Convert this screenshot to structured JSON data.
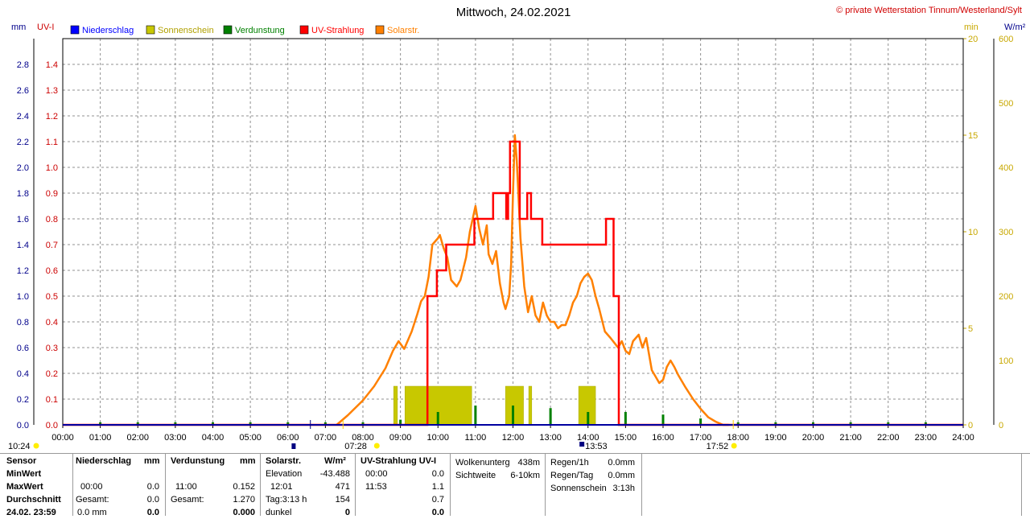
{
  "chart_data": {
    "type": "line",
    "title": "Mittwoch, 24.02.2021",
    "copyright": "© private Wetterstation Tinnum/Westerland/Sylt",
    "units": {
      "left_outer": "mm",
      "left_inner": "UV-I",
      "right_inner": "min",
      "right_outer": "W/m²"
    },
    "legend": [
      {
        "name": "Niederschlag",
        "color": "#0000ff"
      },
      {
        "name": "Sonnenschein",
        "color": "#c8c800"
      },
      {
        "name": "Verdunstung",
        "color": "#008000"
      },
      {
        "name": "UV-Strahlung",
        "color": "#ff0000"
      },
      {
        "name": "Solarstr.",
        "color": "#ff8000"
      }
    ],
    "x_ticks": [
      "00:00",
      "01:00",
      "02:00",
      "03:00",
      "04:00",
      "05:00",
      "06:00",
      "07:00",
      "08:00",
      "09:00",
      "10:00",
      "11:00",
      "12:00",
      "13:00",
      "14:00",
      "15:00",
      "16:00",
      "17:00",
      "18:00",
      "19:00",
      "20:00",
      "21:00",
      "22:00",
      "23:00",
      "24:00"
    ],
    "axes": {
      "mm": {
        "range": [
          0,
          3.0
        ],
        "ticks": [
          "0.0",
          "0.2",
          "0.4",
          "0.6",
          "0.8",
          "1.0",
          "1.2",
          "1.4",
          "1.6",
          "1.8",
          "2.0",
          "2.2",
          "2.4",
          "2.6",
          "2.8"
        ]
      },
      "uvi": {
        "range": [
          0,
          1.5
        ],
        "ticks": [
          "0.0",
          "0.1",
          "0.2",
          "0.3",
          "0.4",
          "0.5",
          "0.6",
          "0.7",
          "0.8",
          "0.9",
          "1.0",
          "1.1",
          "1.2",
          "1.3",
          "1.4"
        ]
      },
      "min": {
        "range": [
          0,
          20
        ],
        "ticks": [
          "0",
          "5",
          "10",
          "15",
          "20"
        ]
      },
      "wm2": {
        "range": [
          0,
          600
        ],
        "ticks": [
          "0",
          "100",
          "200",
          "300",
          "400",
          "500",
          "600"
        ]
      }
    },
    "x_markers": {
      "moonrise": "10:24",
      "sunrise": "07:28",
      "moon": "13:53",
      "sunset": "17:52"
    },
    "series": [
      {
        "name": "Solarstr.",
        "axis": "wm2",
        "x": [
          7.3,
          7.6,
          8.0,
          8.3,
          8.6,
          8.8,
          8.95,
          9.1,
          9.3,
          9.45,
          9.55,
          9.65,
          9.75,
          9.85,
          10.0,
          10.05,
          10.15,
          10.25,
          10.35,
          10.5,
          10.6,
          10.75,
          10.85,
          11.0,
          11.1,
          11.2,
          11.3,
          11.35,
          11.45,
          11.55,
          11.65,
          11.75,
          11.8,
          11.9,
          11.95,
          12.0,
          12.05,
          12.1,
          12.2,
          12.3,
          12.4,
          12.5,
          12.6,
          12.7,
          12.8,
          12.9,
          13.0,
          13.1,
          13.2,
          13.3,
          13.4,
          13.5,
          13.6,
          13.7,
          13.8,
          13.9,
          14.0,
          14.1,
          14.2,
          14.3,
          14.45,
          14.6,
          14.8,
          14.9,
          15.0,
          15.1,
          15.2,
          15.35,
          15.45,
          15.55,
          15.7,
          15.8,
          15.9,
          16.0,
          16.1,
          16.2,
          16.3,
          16.4,
          16.6,
          16.8,
          17.0,
          17.2,
          17.4,
          17.6,
          17.75
        ],
        "values": [
          0,
          15,
          38,
          60,
          88,
          115,
          130,
          118,
          145,
          172,
          192,
          200,
          230,
          280,
          290,
          295,
          275,
          260,
          225,
          215,
          225,
          260,
          300,
          340,
          305,
          280,
          310,
          265,
          250,
          270,
          220,
          190,
          180,
          200,
          250,
          360,
          450,
          410,
          290,
          215,
          175,
          200,
          170,
          160,
          190,
          170,
          160,
          160,
          150,
          155,
          155,
          170,
          190,
          200,
          220,
          230,
          235,
          225,
          200,
          180,
          145,
          135,
          120,
          130,
          115,
          110,
          130,
          140,
          120,
          135,
          85,
          75,
          65,
          70,
          90,
          100,
          90,
          78,
          58,
          40,
          25,
          12,
          5,
          0,
          0
        ]
      },
      {
        "name": "UV-Strahlung",
        "axis": "uvi",
        "x": [
          0,
          9.72,
          9.72,
          9.97,
          9.97,
          10.22,
          10.22,
          10.97,
          10.97,
          11.47,
          11.47,
          11.82,
          11.82,
          11.87,
          11.87,
          11.92,
          11.92,
          12.18,
          12.18,
          12.38,
          12.38,
          12.48,
          12.48,
          12.78,
          12.78,
          14.48,
          14.48,
          14.68,
          14.68,
          14.82,
          14.82,
          24
        ],
        "values": [
          0,
          0,
          0.5,
          0.5,
          0.6,
          0.6,
          0.7,
          0.7,
          0.8,
          0.8,
          0.9,
          0.9,
          0.8,
          0.8,
          0.9,
          0.9,
          1.1,
          1.1,
          0.8,
          0.8,
          0.9,
          0.9,
          0.8,
          0.8,
          0.7,
          0.7,
          0.8,
          0.8,
          0.5,
          0.5,
          0,
          0
        ]
      },
      {
        "name": "Sonnenschein",
        "axis": "min",
        "bars": [
          [
            8.82,
            8.92
          ],
          [
            9.12,
            10.9
          ],
          [
            11.8,
            12.28
          ],
          [
            12.42,
            12.5
          ],
          [
            13.75,
            14.2
          ]
        ]
      },
      {
        "name": "Verdunstung",
        "axis": "mm",
        "x": [
          1,
          2,
          3,
          4,
          5,
          6,
          7,
          8,
          9,
          10,
          11,
          12,
          13,
          14,
          15,
          16,
          17,
          18,
          19,
          20,
          21,
          22,
          23
        ],
        "values": [
          0.02,
          0.02,
          0.02,
          0.02,
          0.02,
          0.02,
          0.02,
          0.02,
          0.04,
          0.1,
          0.15,
          0.15,
          0.13,
          0.1,
          0.1,
          0.08,
          0.05,
          0.02,
          0.02,
          0.02,
          0.02,
          0.02,
          0.02
        ]
      }
    ]
  },
  "stats": {
    "sensor_col": [
      "Sensor",
      "MinWert",
      "MaxWert",
      "Durchschnitt",
      "24.02. 23:59"
    ],
    "niederschlag": {
      "header": "Niederschlag",
      "unit": "mm",
      "max_time": "00:00",
      "max_val": "0.0",
      "total_label": "Gesamt:",
      "total_val": "0.0",
      "last_val": "0.0 mm",
      "last_bold": "0.0"
    },
    "verdunstung": {
      "header": "Verdunstung",
      "unit": "mm",
      "max_time": "11:00",
      "max_val": "0.152",
      "total_label": "Gesamt:",
      "total_val": "1.270",
      "last_bold": "0.000"
    },
    "solar": {
      "header": "Solarstr.",
      "unit": "W/m²",
      "elev_label": "Elevation",
      "elev_val": "-43.488",
      "max_time": "12:01",
      "max_val": "471",
      "day_label": "Tag:3:13 h",
      "day_val": "154",
      "dark_label": "dunkel",
      "dark_val": "0"
    },
    "uv": {
      "header": "UV-Strahlung UV-I",
      "min_time": "00:00",
      "min_val": "0.0",
      "max_time": "11:53",
      "max_val": "1.1",
      "avg_val": "0.7",
      "last_val": "0.0"
    },
    "sicht": {
      "cloud_label": "Wolkenunterg",
      "cloud_val": "438m",
      "vis_label": "Sichtweite",
      "vis_val": "6-10km"
    },
    "regen": {
      "r1_label": "Regen/1h",
      "r1_val": "0.0mm",
      "rt_label": "Regen/Tag",
      "rt_val": "0.0mm",
      "sun_label": "Sonnenschein",
      "sun_val": "3:13h"
    }
  }
}
